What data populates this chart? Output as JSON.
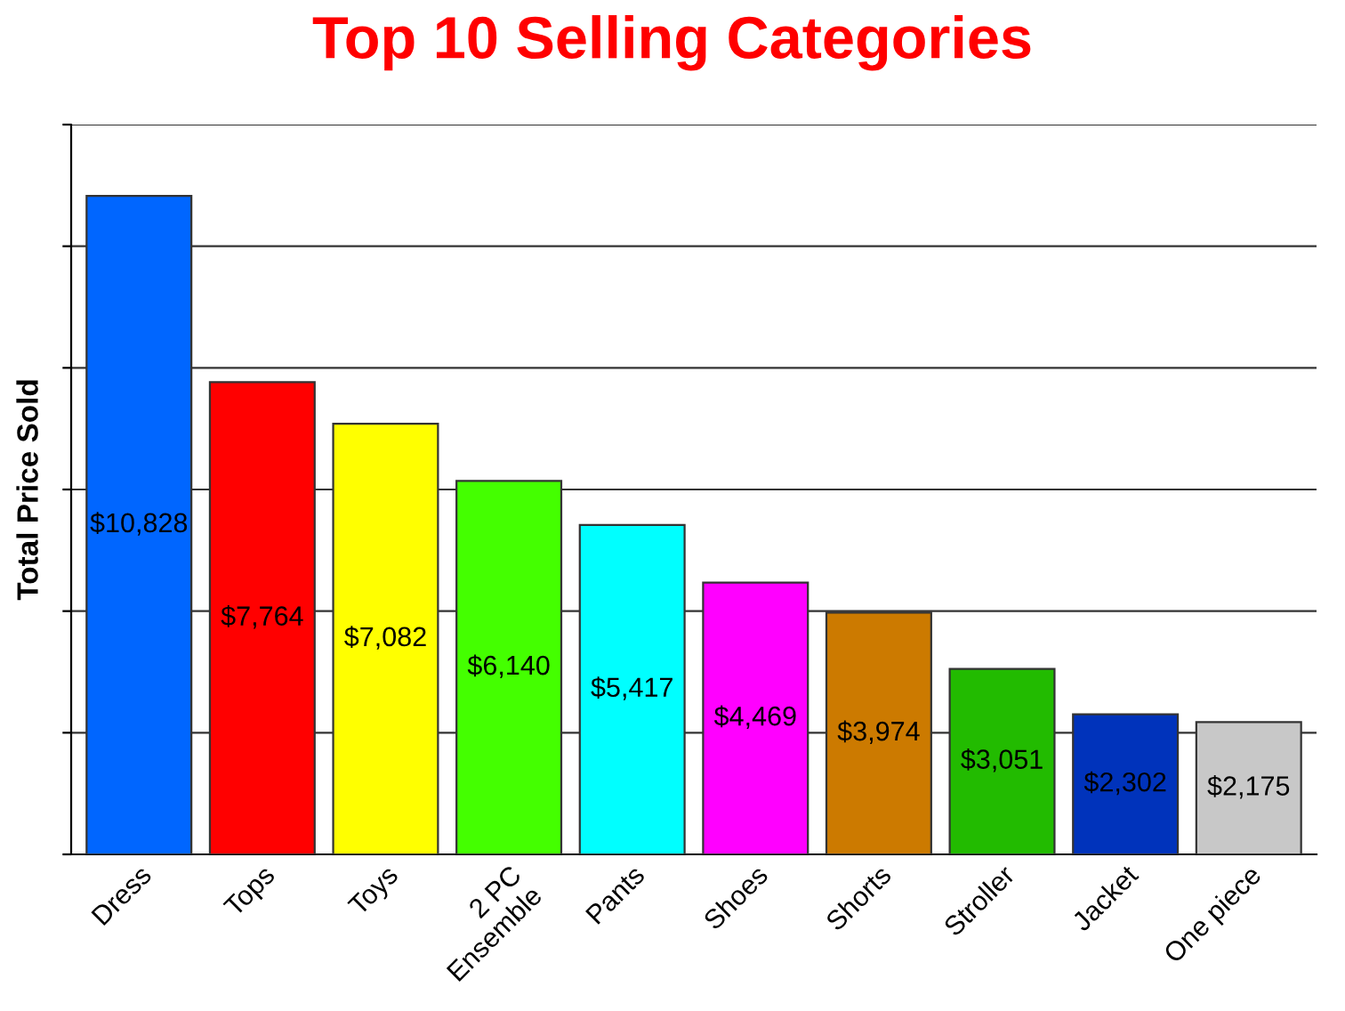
{
  "chart_data": {
    "type": "bar",
    "title": "Top 10 Selling Categories",
    "ylabel": "Total Price Sold",
    "categories": [
      "Dress",
      "Tops",
      "Toys",
      "2 PC\nEnsemble",
      "Pants",
      "Shoes",
      "Shorts",
      "Stroller",
      "Jacket",
      "One piece"
    ],
    "values": [
      10828,
      7764,
      7082,
      6140,
      5417,
      4469,
      3974,
      3051,
      2302,
      2175
    ],
    "value_labels": [
      "$10,828",
      "$7,764",
      "$7,082",
      "$6,140",
      "$5,417",
      "$4,469",
      "$3,974",
      "$3,051",
      "$2,302",
      "$2,175"
    ],
    "colors": [
      "#0066ff",
      "#ff0000",
      "#ffff00",
      "#44ff00",
      "#00ffff",
      "#ff00ff",
      "#cc7a00",
      "#22bb00",
      "#0033bb",
      "#c8c8c8"
    ],
    "ylim": [
      0,
      12000
    ],
    "yticks": [
      {
        "value": 0,
        "label": null
      },
      {
        "value": 2000,
        "label": null
      },
      {
        "value": 4000,
        "label": null
      },
      {
        "value": 6000,
        "label": null
      },
      {
        "value": 8000,
        "label": null
      },
      {
        "value": 10000,
        "label": null
      },
      {
        "value": 12000,
        "label": null
      }
    ],
    "grid": "y"
  }
}
